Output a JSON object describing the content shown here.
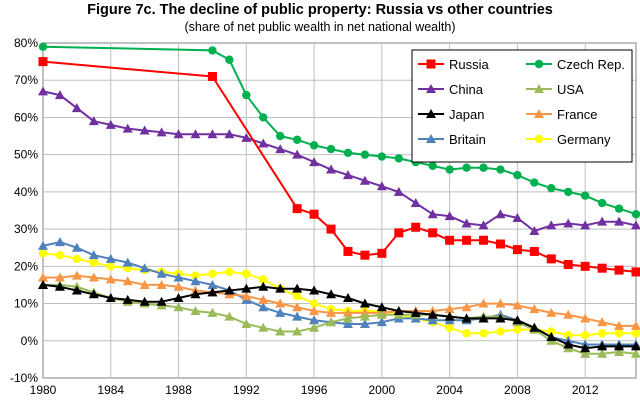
{
  "chart_data": {
    "type": "line",
    "title": "Figure 7c. The decline of public property: Russia vs other countries",
    "subtitle": "(share of net public wealth in net national wealth)",
    "xlabel": "",
    "ylabel": "",
    "xlim": [
      1980,
      2015
    ],
    "ylim": [
      -10,
      80
    ],
    "xticks": [
      "1980",
      "1984",
      "1988",
      "1992",
      "1996",
      "2000",
      "2004",
      "2008",
      "2012"
    ],
    "yticks": [
      "-10%",
      "0%",
      "10%",
      "20%",
      "30%",
      "40%",
      "50%",
      "60%",
      "70%",
      "80%"
    ],
    "grid": true,
    "legend_position": "top-right",
    "series": [
      {
        "name": "Russia",
        "color": "#ff0000",
        "marker": "square",
        "x": [
          1980,
          1990,
          1995,
          1996,
          1997,
          1998,
          1999,
          2000,
          2001,
          2002,
          2003,
          2004,
          2005,
          2006,
          2007,
          2008,
          2009,
          2010,
          2011,
          2012,
          2013,
          2014,
          2015
        ],
        "y": [
          75,
          71,
          35.5,
          34,
          30,
          24,
          23,
          23.5,
          29,
          30.5,
          29,
          27,
          27,
          27,
          26,
          24.5,
          24,
          22,
          20.5,
          20,
          19.5,
          19,
          18.5
        ]
      },
      {
        "name": "Czech Rep.",
        "color": "#00b050",
        "marker": "circle",
        "x": [
          1980,
          1990,
          1991,
          1992,
          1993,
          1994,
          1995,
          1996,
          1997,
          1998,
          1999,
          2000,
          2001,
          2002,
          2003,
          2004,
          2005,
          2006,
          2007,
          2008,
          2009,
          2010,
          2011,
          2012,
          2013,
          2014,
          2015
        ],
        "y": [
          79,
          78,
          75.5,
          66,
          60,
          55,
          54,
          52.5,
          51.5,
          50.5,
          50,
          49.5,
          49,
          48,
          47,
          46,
          46.5,
          46.5,
          46,
          44.5,
          42.5,
          41,
          40,
          39,
          37,
          35.5,
          34
        ]
      },
      {
        "name": "China",
        "color": "#7030a0",
        "marker": "triangle",
        "x": [
          1980,
          1981,
          1982,
          1983,
          1984,
          1985,
          1986,
          1987,
          1988,
          1989,
          1990,
          1991,
          1992,
          1993,
          1994,
          1995,
          1996,
          1997,
          1998,
          1999,
          2000,
          2001,
          2002,
          2003,
          2004,
          2005,
          2006,
          2007,
          2008,
          2009,
          2010,
          2011,
          2012,
          2013,
          2014,
          2015
        ],
        "y": [
          67,
          66,
          62.5,
          59,
          58,
          57,
          56.5,
          56,
          55.5,
          55.5,
          55.5,
          55.5,
          54.5,
          53,
          51.5,
          50,
          48,
          46,
          44.5,
          43,
          41.5,
          40,
          37,
          34,
          33.5,
          31.5,
          31,
          34,
          33,
          29.5,
          31,
          31.5,
          31,
          32,
          32,
          31
        ]
      },
      {
        "name": "USA",
        "color": "#9bbb59",
        "marker": "triangle",
        "x": [
          1980,
          1981,
          1982,
          1983,
          1984,
          1985,
          1986,
          1987,
          1988,
          1989,
          1990,
          1991,
          1992,
          1993,
          1994,
          1995,
          1996,
          1997,
          1998,
          1999,
          2000,
          2001,
          2002,
          2003,
          2004,
          2005,
          2006,
          2007,
          2008,
          2009,
          2010,
          2011,
          2012,
          2013,
          2014,
          2015
        ],
        "y": [
          15,
          15,
          14.5,
          13,
          11.5,
          10.5,
          10,
          9.5,
          9,
          8,
          7.5,
          6.5,
          4.5,
          3.5,
          2.5,
          2.5,
          3.5,
          5,
          6,
          6.5,
          7,
          7,
          7,
          7,
          6.5,
          6,
          6.5,
          6.5,
          5,
          3,
          0,
          -2,
          -3.5,
          -3.5,
          -3,
          -3.5
        ]
      },
      {
        "name": "Japan",
        "color": "#000000",
        "marker": "triangle",
        "x": [
          1980,
          1981,
          1982,
          1983,
          1984,
          1985,
          1986,
          1987,
          1988,
          1989,
          1990,
          1991,
          1992,
          1993,
          1994,
          1995,
          1996,
          1997,
          1998,
          1999,
          2000,
          2001,
          2002,
          2003,
          2004,
          2005,
          2006,
          2007,
          2008,
          2009,
          2010,
          2011,
          2012,
          2013,
          2014,
          2015
        ],
        "y": [
          15,
          14.5,
          13.5,
          12.5,
          11.5,
          11,
          10.5,
          10.5,
          11.5,
          12.5,
          13,
          13.5,
          14,
          14.5,
          14,
          14,
          13.5,
          12.5,
          11.5,
          10,
          9,
          8,
          7.5,
          7,
          6.5,
          6,
          6,
          6,
          5.5,
          3.5,
          1,
          -1,
          -2,
          -1.5,
          -1.5,
          -1.5
        ]
      },
      {
        "name": "France",
        "color": "#f79646",
        "marker": "triangle",
        "x": [
          1980,
          1981,
          1982,
          1983,
          1984,
          1985,
          1986,
          1987,
          1988,
          1989,
          1990,
          1991,
          1992,
          1993,
          1994,
          1995,
          1996,
          1997,
          1998,
          1999,
          2000,
          2001,
          2002,
          2003,
          2004,
          2005,
          2006,
          2007,
          2008,
          2009,
          2010,
          2011,
          2012,
          2013,
          2014,
          2015
        ],
        "y": [
          17,
          17,
          17.5,
          17,
          16.5,
          16,
          15,
          15,
          14.5,
          13.5,
          13,
          12.5,
          12,
          11,
          10,
          9,
          8,
          7.5,
          7.5,
          7.5,
          7.5,
          8,
          8,
          8,
          8.5,
          9,
          10,
          10,
          9.5,
          8.5,
          7.5,
          7,
          6,
          5,
          4,
          4
        ]
      },
      {
        "name": "Britain",
        "color": "#4f81bd",
        "marker": "triangle",
        "x": [
          1980,
          1981,
          1982,
          1983,
          1984,
          1985,
          1986,
          1987,
          1988,
          1989,
          1990,
          1991,
          1992,
          1993,
          1994,
          1995,
          1996,
          1997,
          1998,
          1999,
          2000,
          2001,
          2002,
          2003,
          2004,
          2005,
          2006,
          2007,
          2008,
          2009,
          2010,
          2011,
          2012,
          2013,
          2014,
          2015
        ],
        "y": [
          25.5,
          26.5,
          25,
          23,
          22,
          21,
          19.5,
          18,
          17,
          16,
          15,
          13.5,
          11,
          9,
          7.5,
          6.5,
          5.5,
          5,
          4.5,
          4.5,
          5,
          6,
          6,
          5.5,
          5.5,
          5.5,
          6,
          7,
          5.5,
          3.5,
          1,
          0,
          -1,
          -1,
          -1,
          -1
        ]
      },
      {
        "name": "Germany",
        "color": "#ffff00",
        "marker": "circle",
        "x": [
          1980,
          1981,
          1982,
          1983,
          1984,
          1985,
          1986,
          1987,
          1988,
          1989,
          1990,
          1991,
          1992,
          1993,
          1994,
          1995,
          1996,
          1997,
          1998,
          1999,
          2000,
          2001,
          2002,
          2003,
          2004,
          2005,
          2006,
          2007,
          2008,
          2009,
          2010,
          2011,
          2012,
          2013,
          2014,
          2015
        ],
        "y": [
          23.5,
          23,
          22,
          21,
          20,
          19.5,
          19,
          18.5,
          18,
          17.5,
          18,
          18.5,
          18,
          16.5,
          14,
          12,
          10,
          8.5,
          8,
          8,
          8,
          7,
          6,
          5,
          3.5,
          2,
          2,
          2.5,
          3,
          3,
          2.5,
          1.5,
          1.5,
          2,
          2,
          2
        ]
      }
    ]
  }
}
